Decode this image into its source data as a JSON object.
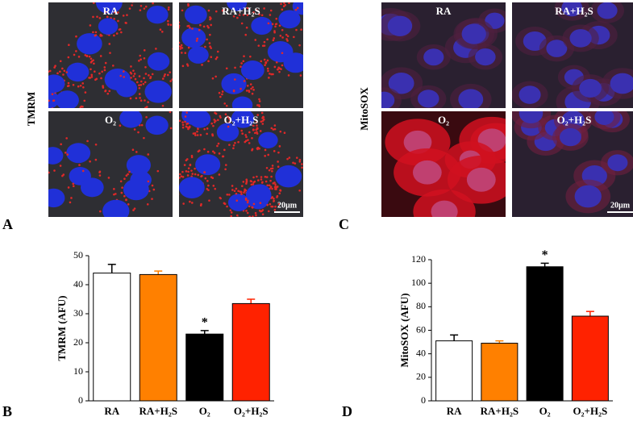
{
  "image_panels": [
    {
      "letter": "A",
      "stain": "TMRM",
      "labels": [
        "RA",
        "RA+H₂S",
        "O₂",
        "O₂+H₂S"
      ],
      "scale_bar": "20µm"
    },
    {
      "letter": "C",
      "stain": "MitoSOX",
      "labels": [
        "RA",
        "RA+H₂S",
        "O₂",
        "O₂+H₂S"
      ],
      "scale_bar": "20µm"
    }
  ],
  "chart_data": [
    {
      "type": "bar",
      "letter": "B",
      "y_label": "TMRM (AFU)",
      "categories": [
        "RA",
        "RA+H₂S",
        "O₂",
        "O₂+H₂S"
      ],
      "values": [
        44,
        43.5,
        23,
        33.5
      ],
      "errors": [
        3,
        1.2,
        1.2,
        1.5
      ],
      "colors": [
        "#ffffff",
        "#ff8000",
        "#000000",
        "#ff2200"
      ],
      "significance": [
        null,
        null,
        "*",
        null
      ],
      "ylim": [
        0,
        50
      ],
      "yticks": [
        0,
        10,
        20,
        30,
        40,
        50
      ]
    },
    {
      "type": "bar",
      "letter": "D",
      "y_label": "MitoSOX (AFU)",
      "categories": [
        "RA",
        "RA+H₂S",
        "O₂",
        "O₂+H₂S"
      ],
      "values": [
        51,
        49,
        114,
        72
      ],
      "errors": [
        5,
        2,
        3,
        4
      ],
      "colors": [
        "#ffffff",
        "#ff8000",
        "#000000",
        "#ff2200"
      ],
      "significance": [
        null,
        null,
        "*",
        null
      ],
      "ylim": [
        0,
        120
      ],
      "yticks": [
        0,
        20,
        40,
        60,
        80,
        100,
        120
      ]
    }
  ]
}
